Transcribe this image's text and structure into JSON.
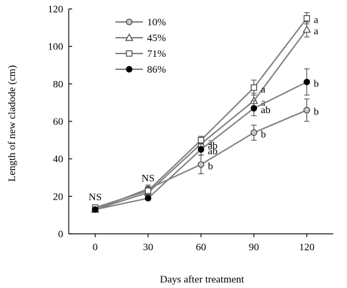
{
  "chart_data": {
    "type": "line",
    "xlabel": "Days after treatment",
    "ylabel": "Length of new cladode (cm)",
    "x": [
      0,
      30,
      60,
      90,
      120
    ],
    "xticks": [
      "0",
      "30",
      "60",
      "90",
      "120"
    ],
    "yticks": [
      "0",
      "20",
      "40",
      "60",
      "80",
      "100",
      "120"
    ],
    "xlim": [
      -15,
      135
    ],
    "ylim": [
      0,
      120
    ],
    "grid": false,
    "legend_position": "top-left",
    "series": [
      {
        "name": "10%",
        "marker": "circle-hatched",
        "color": "#808080",
        "values": [
          13,
          24,
          37,
          54,
          66
        ],
        "errors": [
          1,
          2,
          5,
          4,
          6
        ],
        "labels": [
          "",
          "",
          "b",
          "b",
          "b"
        ]
      },
      {
        "name": "45%",
        "marker": "triangle-open",
        "color": "#808080",
        "values": [
          13,
          22,
          48,
          71,
          109
        ],
        "errors": [
          1,
          2,
          3,
          4,
          4
        ],
        "labels": [
          "",
          "",
          "ab",
          "a",
          "a"
        ]
      },
      {
        "name": "71%",
        "marker": "square-open",
        "color": "#808080",
        "values": [
          14,
          23,
          50,
          78,
          115
        ],
        "errors": [
          1,
          2,
          2,
          4,
          3
        ],
        "labels": [
          "",
          "",
          "a",
          "a",
          "a"
        ]
      },
      {
        "name": "86%",
        "marker": "circle-filled",
        "color": "#808080",
        "values": [
          13,
          19,
          45,
          67,
          81
        ],
        "errors": [
          1,
          1,
          3,
          4,
          7
        ],
        "labels": [
          "",
          "",
          "ab",
          "ab",
          "b"
        ]
      }
    ],
    "annotations": [
      {
        "text": "NS",
        "x": 0,
        "y": 18
      },
      {
        "text": "NS",
        "x": 30,
        "y": 28
      }
    ]
  }
}
